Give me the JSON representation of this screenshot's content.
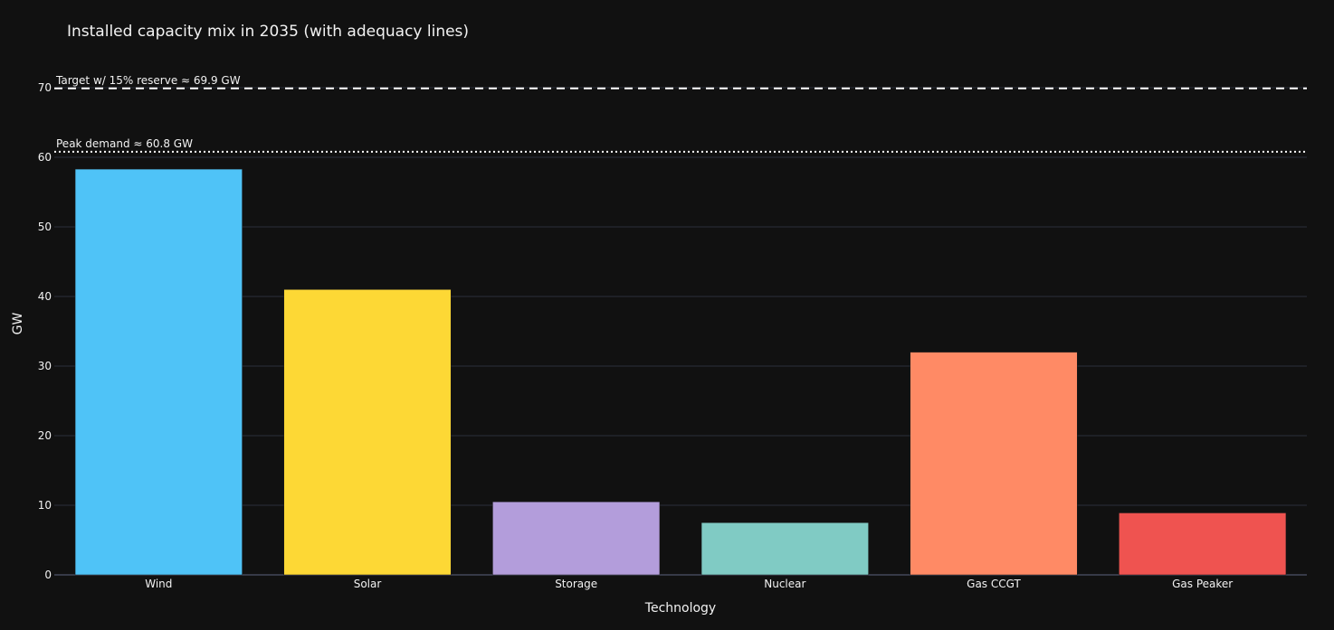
{
  "chart_data": {
    "type": "bar",
    "title": "Installed capacity mix in 2035 (with adequacy lines)",
    "xlabel": "Technology",
    "ylabel": "GW",
    "categories": [
      "Wind",
      "Solar",
      "Storage",
      "Nuclear",
      "Gas CCGT",
      "Gas Peaker"
    ],
    "values": [
      58.3,
      41.0,
      10.5,
      7.5,
      32.0,
      8.9
    ],
    "colors": [
      "#4fc3f7",
      "#fdd835",
      "#b39ddb",
      "#80cbc4",
      "#ff8a65",
      "#ef5350"
    ],
    "ylim": [
      0,
      70
    ],
    "yticks": [
      0,
      10,
      20,
      30,
      40,
      50,
      60,
      70
    ],
    "grid": true,
    "reference_lines": [
      {
        "label": "Peak demand ≈ 60.8 GW",
        "value": 60.8,
        "style": "dotted",
        "color": "#ffffff"
      },
      {
        "label": "Target w/ 15% reserve ≈ 69.9 GW",
        "value": 69.9,
        "style": "dashed",
        "color": "#ffffff"
      }
    ],
    "background": "#111111"
  }
}
